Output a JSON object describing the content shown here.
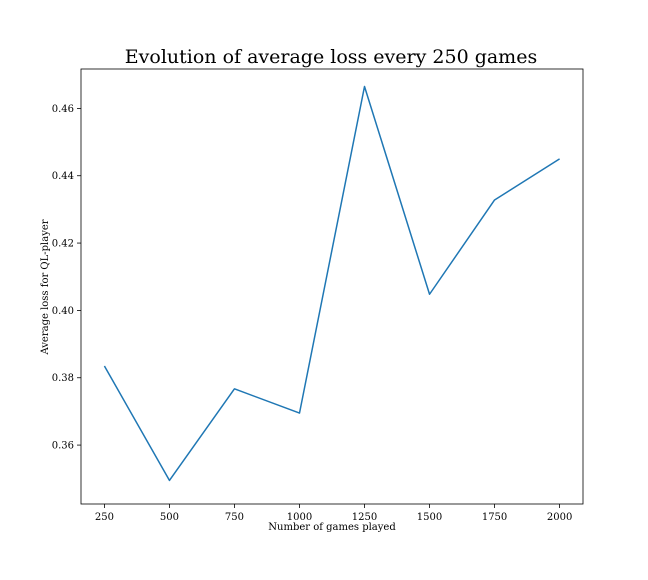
{
  "chart_data": {
    "type": "line",
    "title": "Evolution of average loss every 250 games",
    "xlabel": "Number of games played",
    "ylabel": "Average loss for QL-player",
    "x": [
      250,
      500,
      750,
      1000,
      1250,
      1500,
      1750,
      2000
    ],
    "series": [
      {
        "values": [
          0.3835,
          0.3495,
          0.3767,
          0.3695,
          0.4665,
          0.4048,
          0.4328,
          0.445
        ],
        "color": "#1f77b4"
      }
    ],
    "xlim": [
      160,
      2090
    ],
    "ylim": [
      0.3425,
      0.4717
    ],
    "xticks": [
      250,
      500,
      750,
      1000,
      1250,
      1500,
      1750,
      2000
    ],
    "xtick_labels": [
      "250",
      "500",
      "750",
      "1000",
      "1250",
      "1500",
      "1750",
      "2000"
    ],
    "yticks": [
      0.36,
      0.38,
      0.4,
      0.42,
      0.44,
      0.46
    ],
    "ytick_labels": [
      "0.36",
      "0.38",
      "0.40",
      "0.42",
      "0.44",
      "0.46"
    ],
    "grid": false,
    "legend": "none"
  }
}
